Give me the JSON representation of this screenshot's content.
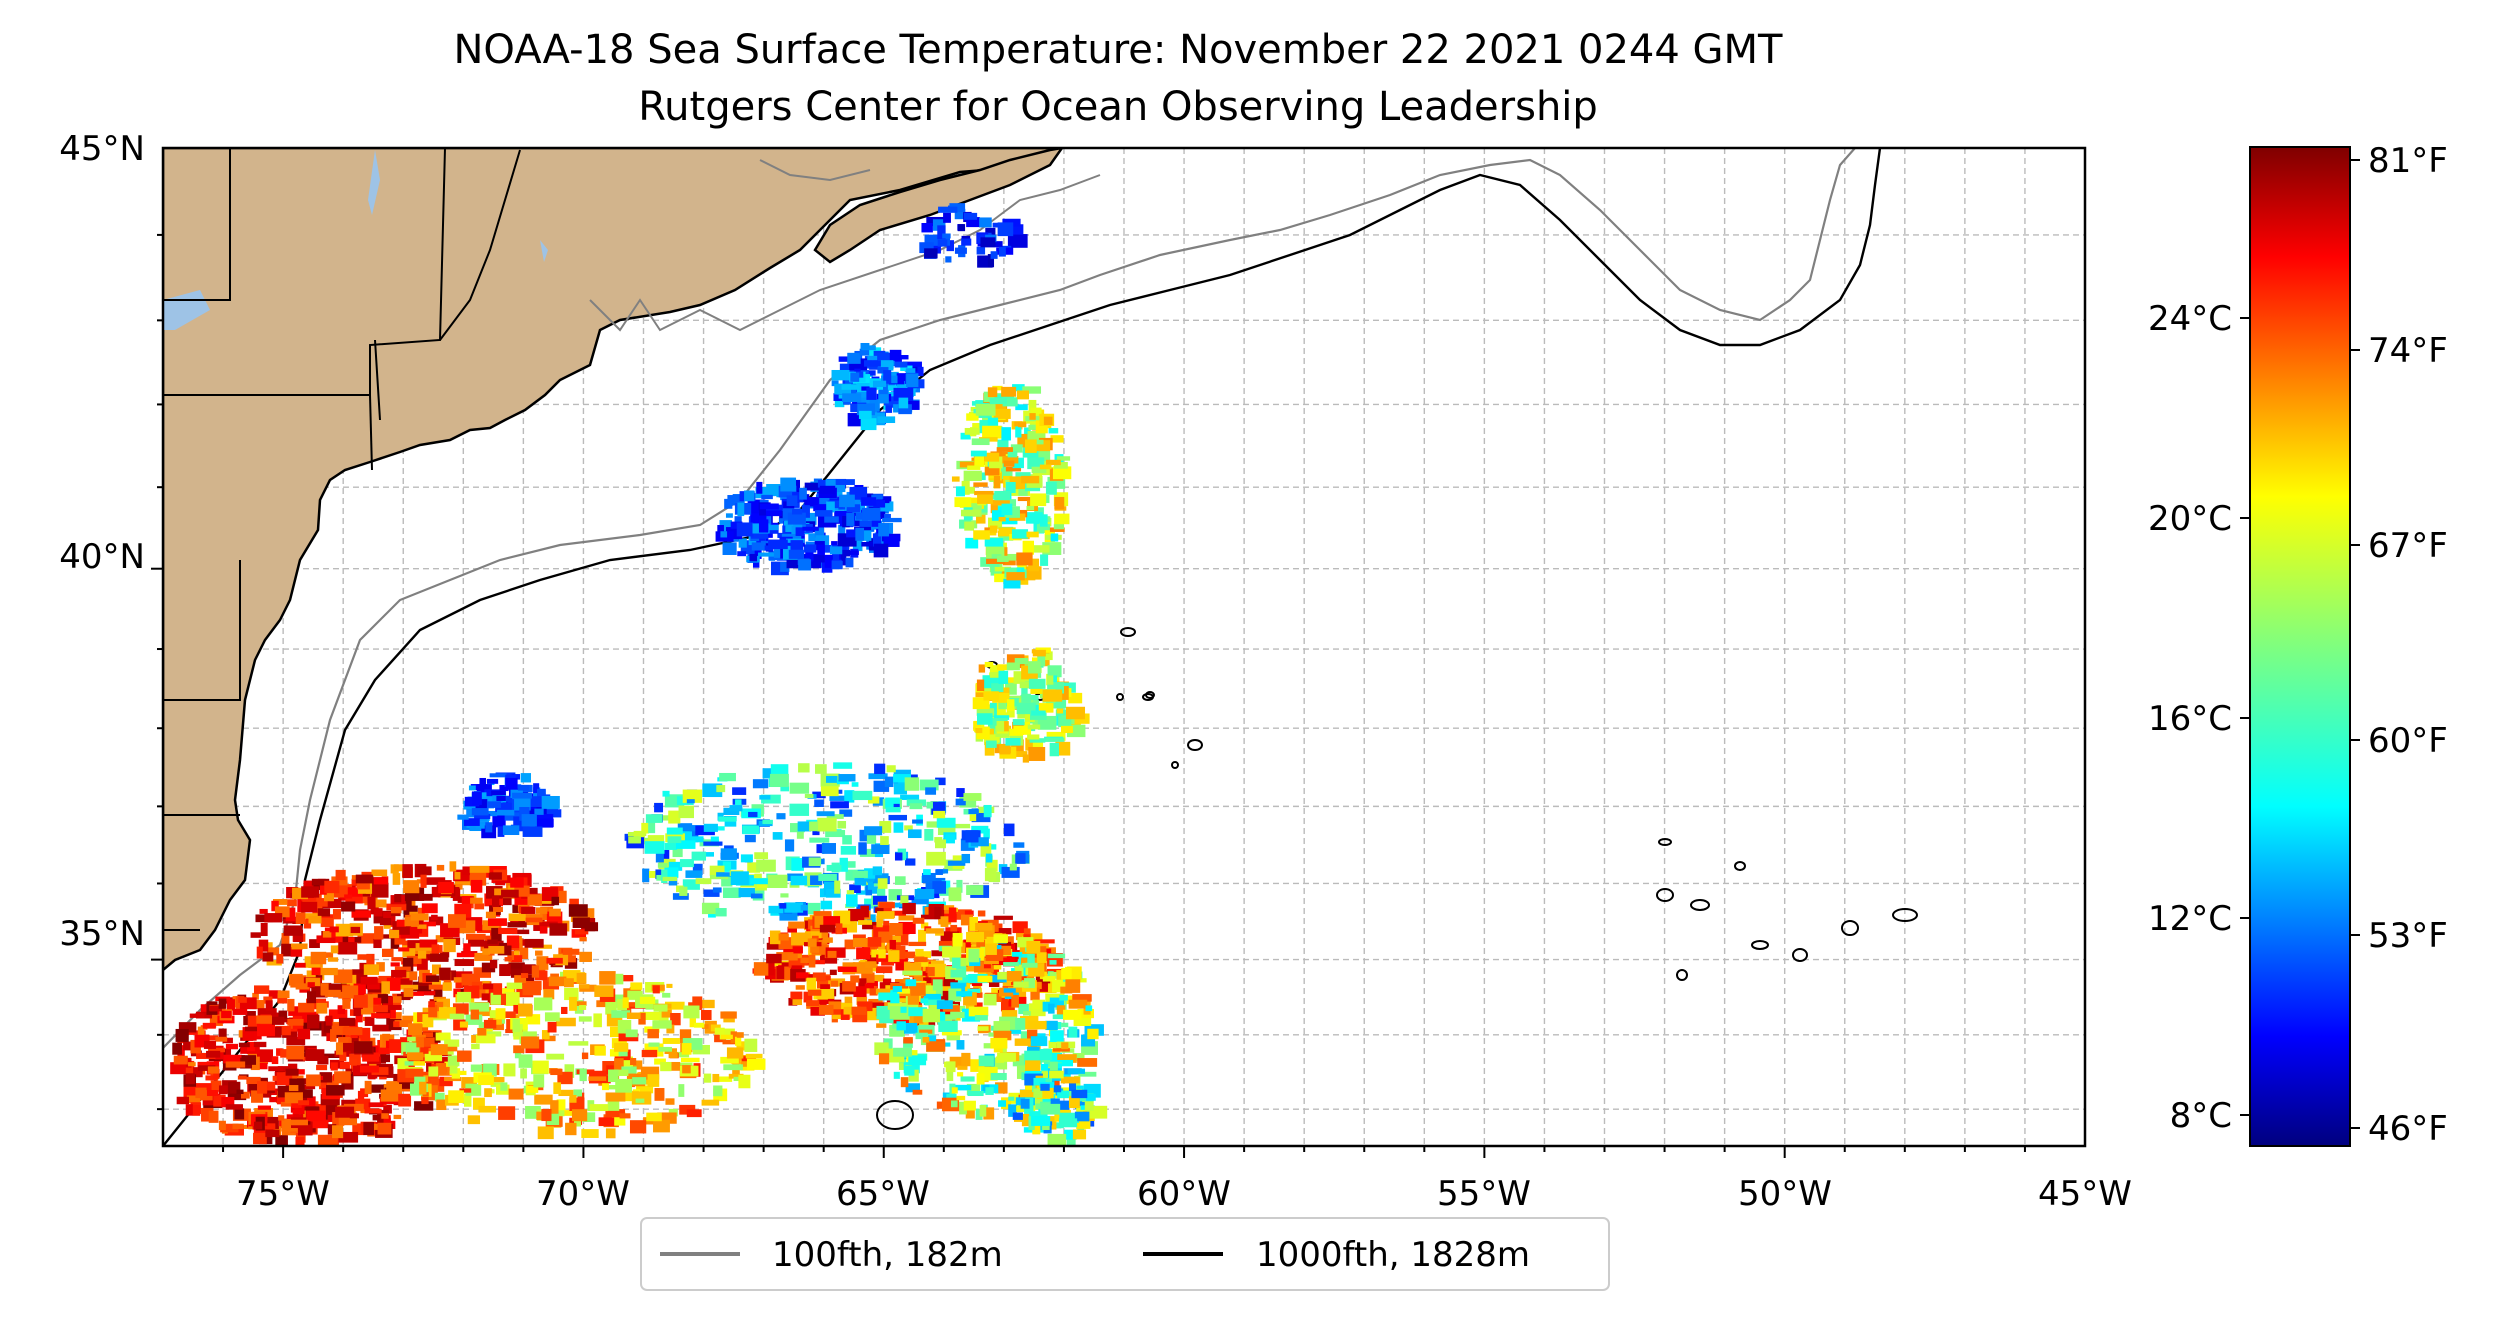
{
  "title": {
    "line1": "NOAA-18 Sea Surface Temperature: November 22 2021 0244 GMT",
    "line2": "Rutgers Center for Ocean Observing Leadership"
  },
  "map": {
    "lon_range": [
      -77,
      -45
    ],
    "lat_range": [
      32.5,
      45
    ],
    "lon_tick_labels": [
      "75°W",
      "70°W",
      "65°W",
      "60°W",
      "55°W",
      "50°W",
      "45°W"
    ],
    "lat_tick_labels": [
      "45°N",
      "40°N",
      "35°N"
    ],
    "gridlines": true,
    "land_color": "#d2b48c",
    "lake_color": "#9ec3e6"
  },
  "colorbar": {
    "celsius_labels": [
      "24°C",
      "20°C",
      "16°C",
      "12°C",
      "8°C"
    ],
    "fahrenheit_labels": [
      "81°F",
      "74°F",
      "67°F",
      "60°F",
      "53°F",
      "46°F"
    ],
    "colormap": "jet"
  },
  "legend": {
    "items": [
      {
        "label": "100fth, 182m",
        "color": "#808080"
      },
      {
        "label": "1000fth, 1828m",
        "color": "#000000"
      }
    ]
  }
}
